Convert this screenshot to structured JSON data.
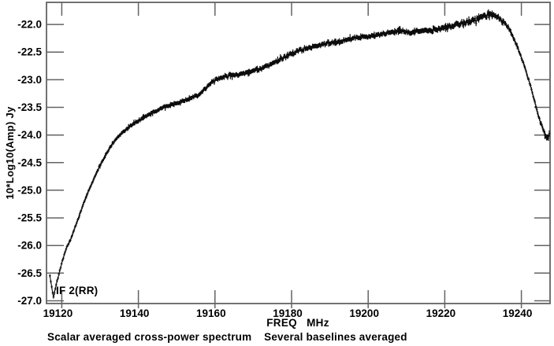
{
  "chart_data": {
    "type": "scatter",
    "title": "",
    "xlabel": "FREQ   MHz",
    "ylabel": "10*Log10(Amp) Jy",
    "if_label": "IF 2(RR)",
    "caption": "Scalar averaged cross-power spectrum    Several baselines averaged",
    "xlim": [
      19116,
      19247.5
    ],
    "ylim": [
      -27.05,
      -21.6
    ],
    "x_ticks": [
      19120,
      19140,
      19160,
      19180,
      19200,
      19220,
      19240
    ],
    "y_ticks": [
      -22.0,
      -22.5,
      -23.0,
      -23.5,
      -24.0,
      -24.5,
      -25.0,
      -25.5,
      -26.0,
      -26.5,
      -27.0
    ],
    "grid": false,
    "legend": "none",
    "n_channels": 560,
    "marker": "plus-with-error-bar",
    "colors": {
      "background": "#ffffff",
      "axis": "#636363",
      "data": "#0d0d0d",
      "text": "#000000"
    },
    "series": [
      {
        "name": "IF 2(RR) cross-power amplitude",
        "units": "10*Log10(Amp) Jy vs MHz",
        "anchors": [
          [
            19116.9,
            -26.55
          ],
          [
            19117.3,
            -26.72
          ],
          [
            19117.8,
            -26.95
          ],
          [
            19118.4,
            -26.74
          ],
          [
            19119.3,
            -26.5
          ],
          [
            19120.3,
            -26.24
          ],
          [
            19121.3,
            -26.03
          ],
          [
            19122.4,
            -25.88
          ],
          [
            19123.4,
            -25.68
          ],
          [
            19124.5,
            -25.47
          ],
          [
            19125.5,
            -25.27
          ],
          [
            19126.5,
            -25.09
          ],
          [
            19127.6,
            -24.92
          ],
          [
            19128.6,
            -24.76
          ],
          [
            19129.6,
            -24.6
          ],
          [
            19130.7,
            -24.46
          ],
          [
            19131.7,
            -24.33
          ],
          [
            19132.7,
            -24.21
          ],
          [
            19133.8,
            -24.11
          ],
          [
            19134.8,
            -24.03
          ],
          [
            19135.8,
            -23.96
          ],
          [
            19137.0,
            -23.89
          ],
          [
            19138.0,
            -23.83
          ],
          [
            19139.0,
            -23.78
          ],
          [
            19141.0,
            -23.7
          ],
          [
            19143.0,
            -23.62
          ],
          [
            19145.0,
            -23.55
          ],
          [
            19147.0,
            -23.49
          ],
          [
            19150.0,
            -23.43
          ],
          [
            19153.0,
            -23.36
          ],
          [
            19156.0,
            -23.26
          ],
          [
            19158.0,
            -23.12
          ],
          [
            19160.0,
            -23.0
          ],
          [
            19162.0,
            -22.95
          ],
          [
            19164.0,
            -22.92
          ],
          [
            19166.0,
            -22.91
          ],
          [
            19168.0,
            -22.88
          ],
          [
            19170.0,
            -22.84
          ],
          [
            19172.0,
            -22.8
          ],
          [
            19174.0,
            -22.74
          ],
          [
            19176.0,
            -22.67
          ],
          [
            19178.0,
            -22.6
          ],
          [
            19180.0,
            -22.53
          ],
          [
            19182.0,
            -22.47
          ],
          [
            19184.0,
            -22.43
          ],
          [
            19186.0,
            -22.39
          ],
          [
            19188.0,
            -22.36
          ],
          [
            19190.0,
            -22.34
          ],
          [
            19192.0,
            -22.31
          ],
          [
            19194.0,
            -22.28
          ],
          [
            19196.0,
            -22.25
          ],
          [
            19198.0,
            -22.23
          ],
          [
            19200.0,
            -22.21
          ],
          [
            19202.0,
            -22.19
          ],
          [
            19204.0,
            -22.17
          ],
          [
            19206.0,
            -22.14
          ],
          [
            19208.0,
            -22.12
          ],
          [
            19210.0,
            -22.14
          ],
          [
            19212.0,
            -22.13
          ],
          [
            19214.0,
            -22.12
          ],
          [
            19216.0,
            -22.11
          ],
          [
            19218.0,
            -22.09
          ],
          [
            19220.0,
            -22.05
          ],
          [
            19222.0,
            -22.02
          ],
          [
            19224.0,
            -21.99
          ],
          [
            19226.0,
            -21.95
          ],
          [
            19228.0,
            -21.91
          ],
          [
            19230.0,
            -21.86
          ],
          [
            19231.5,
            -21.82
          ],
          [
            19233.0,
            -21.84
          ],
          [
            19234.5,
            -21.89
          ],
          [
            19236.0,
            -21.99
          ],
          [
            19237.5,
            -22.17
          ],
          [
            19239.0,
            -22.42
          ],
          [
            19240.5,
            -22.7
          ],
          [
            19242.0,
            -23.02
          ],
          [
            19243.5,
            -23.4
          ],
          [
            19244.8,
            -23.72
          ],
          [
            19246.0,
            -23.97
          ],
          [
            19247.0,
            -24.08
          ],
          [
            19247.3,
            -23.96
          ]
        ]
      }
    ],
    "noise_profile": [
      [
        19116.9,
        0.012
      ],
      [
        19122,
        0.013
      ],
      [
        19130,
        0.018
      ],
      [
        19140,
        0.022
      ],
      [
        19150,
        0.024
      ],
      [
        19158,
        0.028
      ],
      [
        19166,
        0.03
      ],
      [
        19175,
        0.032
      ],
      [
        19185,
        0.032
      ],
      [
        19195,
        0.03
      ],
      [
        19205,
        0.032
      ],
      [
        19213,
        0.036
      ],
      [
        19220,
        0.042
      ],
      [
        19227,
        0.046
      ],
      [
        19233,
        0.04
      ],
      [
        19238,
        0.025
      ],
      [
        19243,
        0.022
      ],
      [
        19246,
        0.035
      ],
      [
        19247.3,
        0.06
      ]
    ]
  }
}
